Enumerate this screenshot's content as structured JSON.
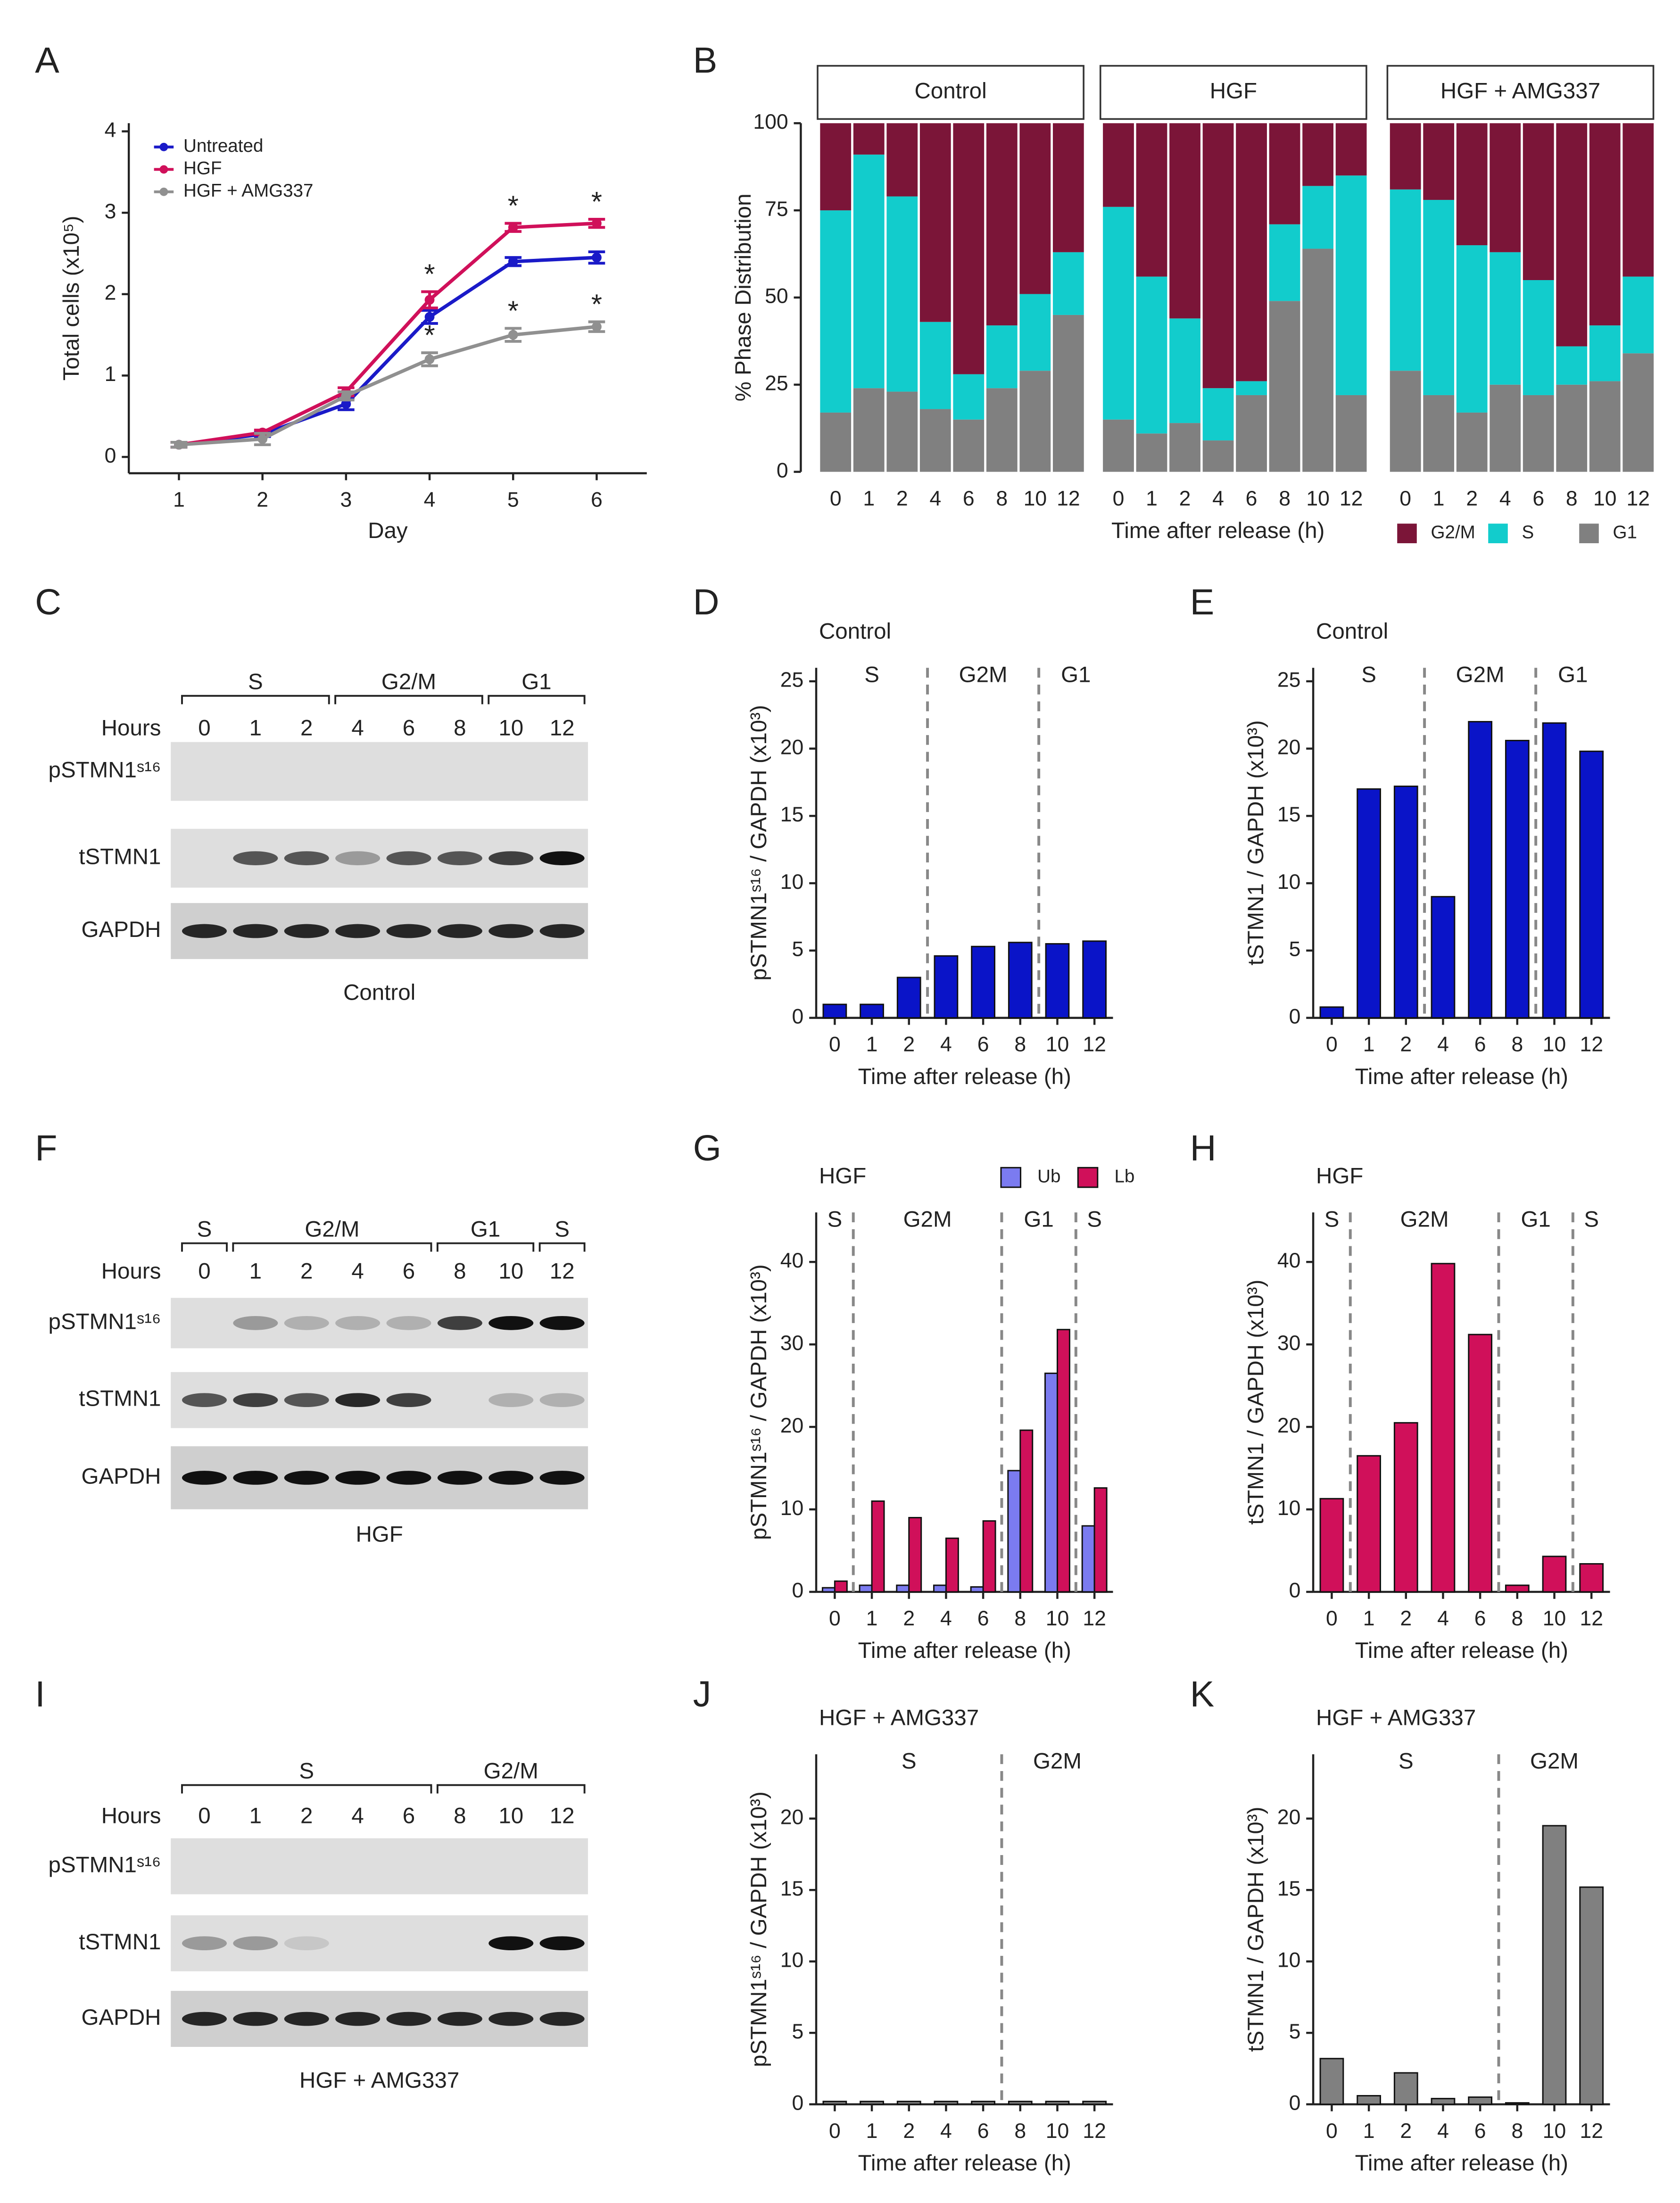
{
  "chart_data": [
    {
      "panel": "A",
      "type": "line",
      "x": [
        1,
        2,
        3,
        4,
        5,
        6
      ],
      "xlim": [
        0.4,
        6.6
      ],
      "xticks": [
        1,
        2,
        3,
        4,
        5,
        6
      ],
      "ylim": [
        -0.2,
        4.1
      ],
      "yticks": [
        0,
        1,
        2,
        3,
        4
      ],
      "xlabel": "Day",
      "ylabel": "Total cells (x10⁵)",
      "series": [
        {
          "name": "Untreated",
          "color": "#1a1ac8",
          "values": [
            0.15,
            0.28,
            0.65,
            1.72,
            2.4,
            2.45
          ],
          "errors": [
            0.03,
            0.03,
            0.07,
            0.08,
            0.05,
            0.07
          ],
          "annotations": [
            null,
            null,
            null,
            null,
            null,
            null
          ]
        },
        {
          "name": "HGF",
          "color": "#d0105a",
          "values": [
            0.15,
            0.3,
            0.8,
            1.93,
            2.82,
            2.87
          ],
          "errors": [
            0.03,
            0.03,
            0.05,
            0.1,
            0.05,
            0.05
          ],
          "annotations": [
            null,
            null,
            null,
            "*",
            "*",
            "*"
          ]
        },
        {
          "name": "HGF + AMG337",
          "color": "#909090",
          "values": [
            0.15,
            0.22,
            0.75,
            1.2,
            1.5,
            1.6
          ],
          "errors": [
            0.03,
            0.07,
            0.05,
            0.08,
            0.08,
            0.06
          ],
          "annotations": [
            null,
            null,
            null,
            "*",
            "*",
            "*"
          ]
        }
      ]
    },
    {
      "panel": "B",
      "type": "bar",
      "stacked": true,
      "categories": [
        "0",
        "1",
        "2",
        "4",
        "6",
        "8",
        "10",
        "12"
      ],
      "ylim": [
        0,
        100
      ],
      "yticks": [
        0,
        25,
        50,
        75,
        100
      ],
      "ylabel": "% Phase Distribution",
      "xlabel": "Time after release (h)",
      "facets": [
        {
          "title": "Control",
          "series": [
            {
              "name": "G1",
              "color": "#808080",
              "values": [
                17,
                24,
                23,
                18,
                15,
                24,
                29,
                45
              ]
            },
            {
              "name": "S",
              "color": "#12cccc",
              "values": [
                58,
                67,
                56,
                25,
                13,
                18,
                22,
                18
              ]
            },
            {
              "name": "G2/M",
              "color": "#7b1538",
              "values": [
                25,
                9,
                21,
                57,
                72,
                58,
                49,
                37
              ]
            }
          ]
        },
        {
          "title": "HGF",
          "series": [
            {
              "name": "G1",
              "color": "#808080",
              "values": [
                15,
                11,
                14,
                9,
                22,
                49,
                64,
                22
              ]
            },
            {
              "name": "S",
              "color": "#12cccc",
              "values": [
                61,
                45,
                30,
                15,
                4,
                22,
                18,
                63
              ]
            },
            {
              "name": "G2/M",
              "color": "#7b1538",
              "values": [
                24,
                44,
                56,
                76,
                74,
                29,
                18,
                15
              ]
            }
          ]
        },
        {
          "title": "HGF + AMG337",
          "series": [
            {
              "name": "G1",
              "color": "#808080",
              "values": [
                29,
                22,
                17,
                25,
                22,
                25,
                26,
                34
              ]
            },
            {
              "name": "S",
              "color": "#12cccc",
              "values": [
                52,
                56,
                48,
                38,
                33,
                11,
                16,
                22
              ]
            },
            {
              "name": "G2/M",
              "color": "#7b1538",
              "values": [
                19,
                22,
                35,
                37,
                45,
                64,
                58,
                44
              ]
            }
          ]
        }
      ]
    },
    {
      "panel": "D",
      "type": "bar",
      "subtitle": "Control",
      "categories": [
        "0",
        "1",
        "2",
        "4",
        "6",
        "8",
        "10",
        "12"
      ],
      "regions": [
        {
          "label": "S",
          "span": 3
        },
        {
          "label": "G2M",
          "span": 3
        },
        {
          "label": "G1",
          "span": 2
        }
      ],
      "ylim": [
        0,
        26
      ],
      "yticks": [
        0,
        5,
        10,
        15,
        20,
        25
      ],
      "ylabel": "pSTMN1ˢ¹⁶ / GAPDH (x10³)",
      "xlabel": "Time after release (h)",
      "series": [
        {
          "color": "#0a14c8",
          "values": [
            1.0,
            1.0,
            3.0,
            4.6,
            5.3,
            5.6,
            5.5,
            5.7
          ]
        }
      ]
    },
    {
      "panel": "E",
      "type": "bar",
      "subtitle": "Control",
      "categories": [
        "0",
        "1",
        "2",
        "4",
        "6",
        "8",
        "10",
        "12"
      ],
      "regions": [
        {
          "label": "S",
          "span": 3
        },
        {
          "label": "G2M",
          "span": 3
        },
        {
          "label": "G1",
          "span": 2
        }
      ],
      "ylim": [
        0,
        26
      ],
      "yticks": [
        0,
        5,
        10,
        15,
        20,
        25
      ],
      "ylabel": "tSTMN1 / GAPDH (x10³)",
      "xlabel": "Time after release (h)",
      "series": [
        {
          "color": "#0a14c8",
          "values": [
            0.8,
            17,
            17.2,
            9,
            22,
            20.6,
            21.9,
            19.8
          ]
        }
      ]
    },
    {
      "panel": "G",
      "type": "bar",
      "subtitle": "HGF",
      "categories": [
        "0",
        "1",
        "2",
        "4",
        "6",
        "8",
        "10",
        "12"
      ],
      "regions": [
        {
          "label": "S",
          "span": 1
        },
        {
          "label": "G2M",
          "span": 4
        },
        {
          "label": "G1",
          "span": 2
        },
        {
          "label": "S",
          "span": 1
        }
      ],
      "ylim": [
        0,
        46
      ],
      "yticks": [
        0,
        10,
        20,
        30,
        40
      ],
      "ylabel": "pSTMN1ˢ¹⁶ / GAPDH (x10³)",
      "xlabel": "Time after release (h)",
      "series": [
        {
          "name": "Ub",
          "color": "#7b7bf0",
          "values": [
            0.5,
            0.8,
            0.8,
            0.8,
            0.6,
            14.7,
            26.5,
            8
          ]
        },
        {
          "name": "Lb",
          "color": "#d0105a",
          "values": [
            1.3,
            11,
            9,
            6.5,
            8.6,
            19.6,
            31.8,
            12.6
          ]
        }
      ]
    },
    {
      "panel": "H",
      "type": "bar",
      "subtitle": "HGF",
      "categories": [
        "0",
        "1",
        "2",
        "4",
        "6",
        "8",
        "10",
        "12"
      ],
      "regions": [
        {
          "label": "S",
          "span": 1
        },
        {
          "label": "G2M",
          "span": 4
        },
        {
          "label": "G1",
          "span": 2
        },
        {
          "label": "S",
          "span": 1
        }
      ],
      "ylim": [
        0,
        46
      ],
      "yticks": [
        0,
        10,
        20,
        30,
        40
      ],
      "ylabel": "tSTMN1 / GAPDH (x10³)",
      "xlabel": "Time after release (h)",
      "series": [
        {
          "color": "#d0105a",
          "values": [
            11.3,
            16.5,
            20.5,
            39.8,
            31.2,
            0.8,
            4.3,
            3.4
          ]
        }
      ]
    },
    {
      "panel": "J",
      "type": "bar",
      "subtitle": "HGF + AMG337",
      "categories": [
        "0",
        "1",
        "2",
        "4",
        "6",
        "8",
        "10",
        "12"
      ],
      "regions": [
        {
          "label": "S",
          "span": 5
        },
        {
          "label": "G2M",
          "span": 3
        }
      ],
      "ylim": [
        0,
        24.5
      ],
      "yticks": [
        0,
        5,
        10,
        15,
        20
      ],
      "ylabel": "pSTMN1ˢ¹⁶ / GAPDH (x10³)",
      "xlabel": "Time after release (h)",
      "series": [
        {
          "color": "#808080",
          "values": [
            0.2,
            0.2,
            0.2,
            0.2,
            0.2,
            0.2,
            0.2,
            0.2
          ]
        }
      ]
    },
    {
      "panel": "K",
      "type": "bar",
      "subtitle": "HGF + AMG337",
      "categories": [
        "0",
        "1",
        "2",
        "4",
        "6",
        "8",
        "10",
        "12"
      ],
      "regions": [
        {
          "label": "S",
          "span": 5
        },
        {
          "label": "G2M",
          "span": 3
        }
      ],
      "ylim": [
        0,
        24.5
      ],
      "yticks": [
        0,
        5,
        10,
        15,
        20
      ],
      "ylabel": "tSTMN1 / GAPDH (x10³)",
      "xlabel": "Time after release (h)",
      "series": [
        {
          "color": "#808080",
          "values": [
            3.2,
            0.6,
            2.2,
            0.4,
            0.5,
            0.1,
            19.5,
            15.2
          ]
        }
      ]
    }
  ],
  "blots": [
    {
      "panel": "C",
      "groups": [
        {
          "label": "S",
          "span": 3
        },
        {
          "label": "G2/M",
          "span": 3
        },
        {
          "label": "G1",
          "span": 2
        }
      ],
      "hours_label": "Hours",
      "hours": [
        "0",
        "1",
        "2",
        "4",
        "6",
        "8",
        "10",
        "12"
      ],
      "rows": [
        "pSTMN1ˢ¹⁶",
        "tSTMN1",
        "GAPDH"
      ],
      "caption": "Control"
    },
    {
      "panel": "F",
      "groups": [
        {
          "label": "S",
          "span": 1
        },
        {
          "label": "G2/M",
          "span": 4
        },
        {
          "label": "G1",
          "span": 2
        },
        {
          "label": "S",
          "span": 1
        }
      ],
      "hours_label": "Hours",
      "hours": [
        "0",
        "1",
        "2",
        "4",
        "6",
        "8",
        "10",
        "12"
      ],
      "rows": [
        "pSTMN1ˢ¹⁶",
        "tSTMN1",
        "GAPDH"
      ],
      "caption": "HGF"
    },
    {
      "panel": "I",
      "groups": [
        {
          "label": "S",
          "span": 5
        },
        {
          "label": "G2/M",
          "span": 3
        }
      ],
      "hours_label": "Hours",
      "hours": [
        "0",
        "1",
        "2",
        "4",
        "6",
        "8",
        "10",
        "12"
      ],
      "rows": [
        "pSTMN1ˢ¹⁶",
        "tSTMN1",
        "GAPDH"
      ],
      "caption": "HGF + AMG337"
    }
  ]
}
